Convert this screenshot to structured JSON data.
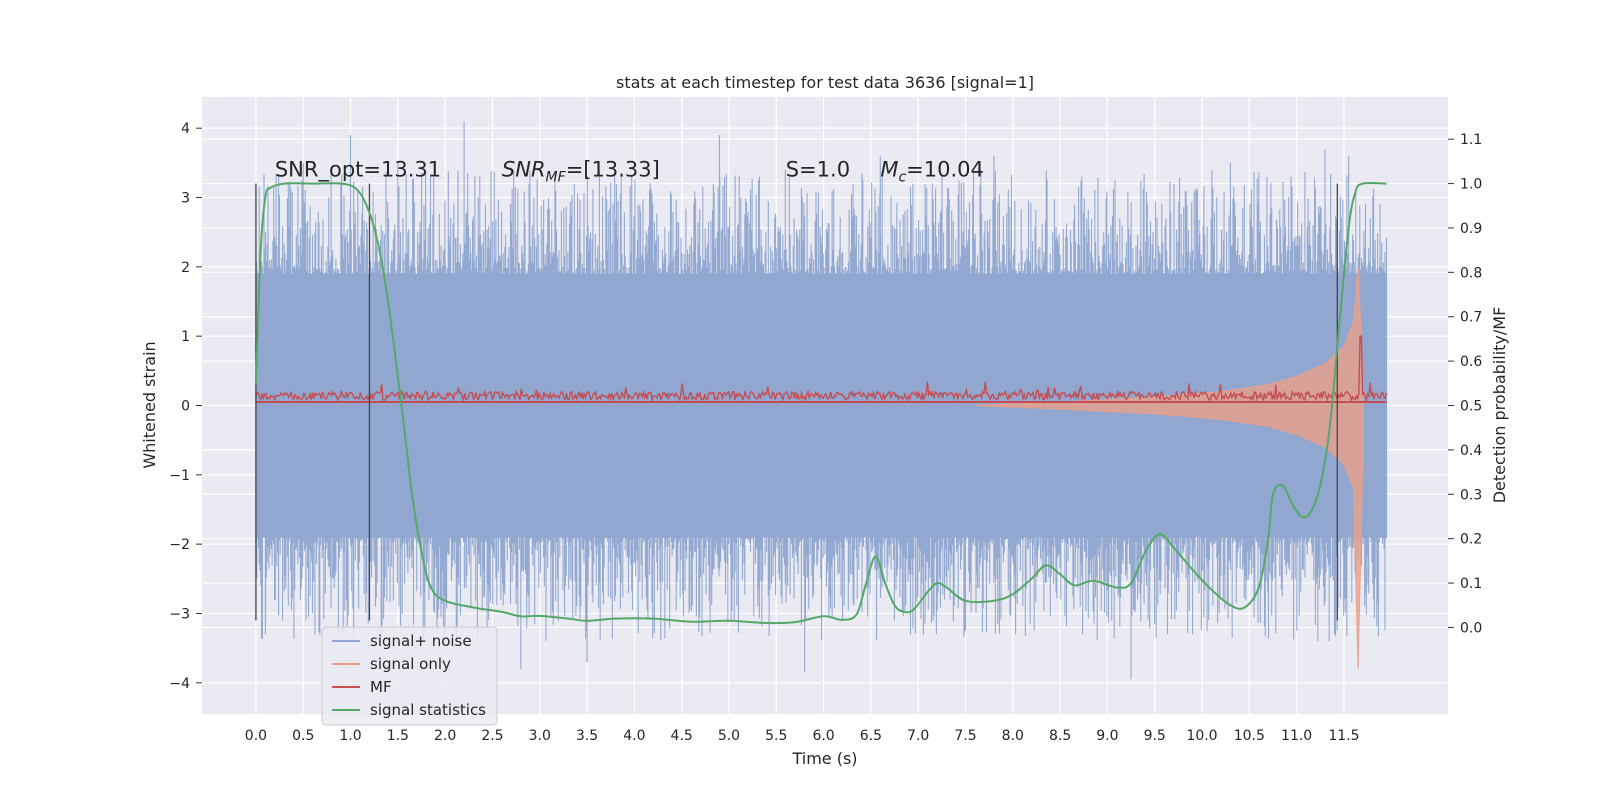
{
  "chart_data": {
    "type": "line",
    "title": "stats at each timestep for test data 3636 [signal=1]",
    "xlabel": "Time (s)",
    "ylabel": "Whitened strain",
    "y2label": "Detection probability/MF",
    "xlim": [
      -0.57,
      12.6
    ],
    "ylim": [
      -4.45,
      4.45
    ],
    "y2lim": [
      -0.195,
      1.195
    ],
    "x_ticks": [
      0.0,
      0.5,
      1.0,
      1.5,
      2.0,
      2.5,
      3.0,
      3.5,
      4.0,
      4.5,
      5.0,
      5.5,
      6.0,
      6.5,
      7.0,
      7.5,
      8.0,
      8.5,
      9.0,
      9.5,
      10.0,
      10.5,
      11.0,
      11.5
    ],
    "x_tick_labels": [
      "0.0",
      "0.5",
      "1.0",
      "1.5",
      "2.0",
      "2.5",
      "3.0",
      "3.5",
      "4.0",
      "4.5",
      "5.0",
      "5.5",
      "6.0",
      "6.5",
      "7.0",
      "7.5",
      "8.0",
      "8.5",
      "9.0",
      "9.5",
      "10.0",
      "10.5",
      "11.0",
      "11.5"
    ],
    "y_ticks": [
      -4,
      -3,
      -2,
      -1,
      0,
      1,
      2,
      3,
      4
    ],
    "y_tick_labels": [
      "−4",
      "−3",
      "−2",
      "−1",
      "0",
      "1",
      "2",
      "3",
      "4"
    ],
    "y2_ticks": [
      0.0,
      0.1,
      0.2,
      0.3,
      0.4,
      0.5,
      0.6,
      0.7,
      0.8,
      0.9,
      1.0,
      1.1
    ],
    "y2_tick_labels": [
      "0.0",
      "0.1",
      "0.2",
      "0.3",
      "0.4",
      "0.5",
      "0.6",
      "0.7",
      "0.8",
      "0.9",
      "1.0",
      "1.1"
    ],
    "grid": true,
    "legend_position": "lower-left",
    "annotations": [
      {
        "key": "snr_opt",
        "text": "SNR_opt=13.31",
        "x": 0.2,
        "y": 3.3
      },
      {
        "key": "snr_mf",
        "text": "SNR_MF=[13.33]",
        "x": 2.6,
        "y": 3.3
      },
      {
        "key": "s",
        "text": "S=1.0",
        "x": 5.6,
        "y": 3.3
      },
      {
        "key": "mc",
        "text": "M_c=10.04",
        "x": 6.6,
        "y": 3.3
      }
    ],
    "vlines": [
      {
        "x": 0.0,
        "y": [
          -3.1,
          3.2
        ]
      },
      {
        "x": 1.2,
        "y": [
          -3.1,
          3.2
        ]
      },
      {
        "x": 11.43,
        "y": [
          -3.1,
          3.2
        ]
      }
    ],
    "series": [
      {
        "name": "signal+ noise",
        "axis": "left",
        "color": "#8fa5cf",
        "x_range": [
          0.0,
          11.95
        ],
        "envelope": [
          -3.0,
          3.0
        ],
        "peaks": [
          [
            0.1,
            -3.3
          ],
          [
            0.5,
            3.5
          ],
          [
            1.0,
            3.9
          ],
          [
            1.5,
            3.5
          ],
          [
            2.2,
            4.1
          ],
          [
            2.8,
            -3.8
          ],
          [
            3.5,
            -3.7
          ],
          [
            4.9,
            3.9
          ],
          [
            5.8,
            -3.85
          ],
          [
            6.6,
            3.6
          ],
          [
            7.8,
            3.6
          ],
          [
            9.25,
            -3.95
          ],
          [
            10.3,
            3.5
          ],
          [
            11.3,
            3.7
          ],
          [
            11.4,
            -3.3
          ],
          [
            11.55,
            3.6
          ]
        ]
      },
      {
        "name": "signal only",
        "axis": "left",
        "color": "#e8a08a",
        "points": [
          [
            7.6,
            0.0
          ],
          [
            8.5,
            0.05
          ],
          [
            9.5,
            0.12
          ],
          [
            10.2,
            0.2
          ],
          [
            10.7,
            0.3
          ],
          [
            11.0,
            0.42
          ],
          [
            11.3,
            0.6
          ],
          [
            11.5,
            0.85
          ],
          [
            11.6,
            1.2
          ],
          [
            11.65,
            2.0
          ],
          [
            11.7,
            0.4
          ]
        ]
      },
      {
        "name": "MF",
        "axis": "left",
        "color": "#c44e52",
        "baseline": 0.08,
        "amplitude": 0.12,
        "spike": [
          11.68,
          1.0
        ]
      },
      {
        "name": "signal statistics",
        "axis": "right",
        "color": "#55a868",
        "points": [
          [
            0.0,
            0.55
          ],
          [
            0.05,
            0.85
          ],
          [
            0.1,
            0.97
          ],
          [
            0.15,
            0.99
          ],
          [
            0.3,
            1.0
          ],
          [
            0.6,
            1.0
          ],
          [
            0.9,
            1.0
          ],
          [
            1.05,
            0.99
          ],
          [
            1.15,
            0.96
          ],
          [
            1.25,
            0.9
          ],
          [
            1.35,
            0.8
          ],
          [
            1.45,
            0.65
          ],
          [
            1.55,
            0.48
          ],
          [
            1.65,
            0.3
          ],
          [
            1.75,
            0.17
          ],
          [
            1.85,
            0.09
          ],
          [
            2.0,
            0.06
          ],
          [
            2.3,
            0.045
          ],
          [
            2.6,
            0.035
          ],
          [
            2.8,
            0.025
          ],
          [
            3.0,
            0.026
          ],
          [
            3.3,
            0.02
          ],
          [
            3.5,
            0.015
          ],
          [
            3.8,
            0.02
          ],
          [
            4.2,
            0.02
          ],
          [
            4.6,
            0.013
          ],
          [
            5.0,
            0.015
          ],
          [
            5.4,
            0.01
          ],
          [
            5.7,
            0.012
          ],
          [
            6.0,
            0.025
          ],
          [
            6.2,
            0.017
          ],
          [
            6.35,
            0.03
          ],
          [
            6.45,
            0.1
          ],
          [
            6.55,
            0.16
          ],
          [
            6.65,
            0.1
          ],
          [
            6.75,
            0.05
          ],
          [
            6.85,
            0.035
          ],
          [
            6.95,
            0.04
          ],
          [
            7.1,
            0.08
          ],
          [
            7.2,
            0.1
          ],
          [
            7.3,
            0.09
          ],
          [
            7.5,
            0.06
          ],
          [
            7.8,
            0.06
          ],
          [
            8.0,
            0.075
          ],
          [
            8.2,
            0.11
          ],
          [
            8.35,
            0.14
          ],
          [
            8.5,
            0.12
          ],
          [
            8.65,
            0.095
          ],
          [
            8.85,
            0.105
          ],
          [
            9.1,
            0.09
          ],
          [
            9.25,
            0.1
          ],
          [
            9.4,
            0.17
          ],
          [
            9.55,
            0.21
          ],
          [
            9.7,
            0.18
          ],
          [
            9.9,
            0.13
          ],
          [
            10.1,
            0.085
          ],
          [
            10.3,
            0.05
          ],
          [
            10.45,
            0.045
          ],
          [
            10.6,
            0.09
          ],
          [
            10.7,
            0.2
          ],
          [
            10.75,
            0.3
          ],
          [
            10.85,
            0.32
          ],
          [
            10.95,
            0.28
          ],
          [
            11.05,
            0.25
          ],
          [
            11.15,
            0.26
          ],
          [
            11.25,
            0.32
          ],
          [
            11.35,
            0.45
          ],
          [
            11.45,
            0.68
          ],
          [
            11.55,
            0.9
          ],
          [
            11.62,
            0.98
          ],
          [
            11.7,
            1.0
          ],
          [
            11.95,
            1.0
          ]
        ]
      }
    ]
  }
}
